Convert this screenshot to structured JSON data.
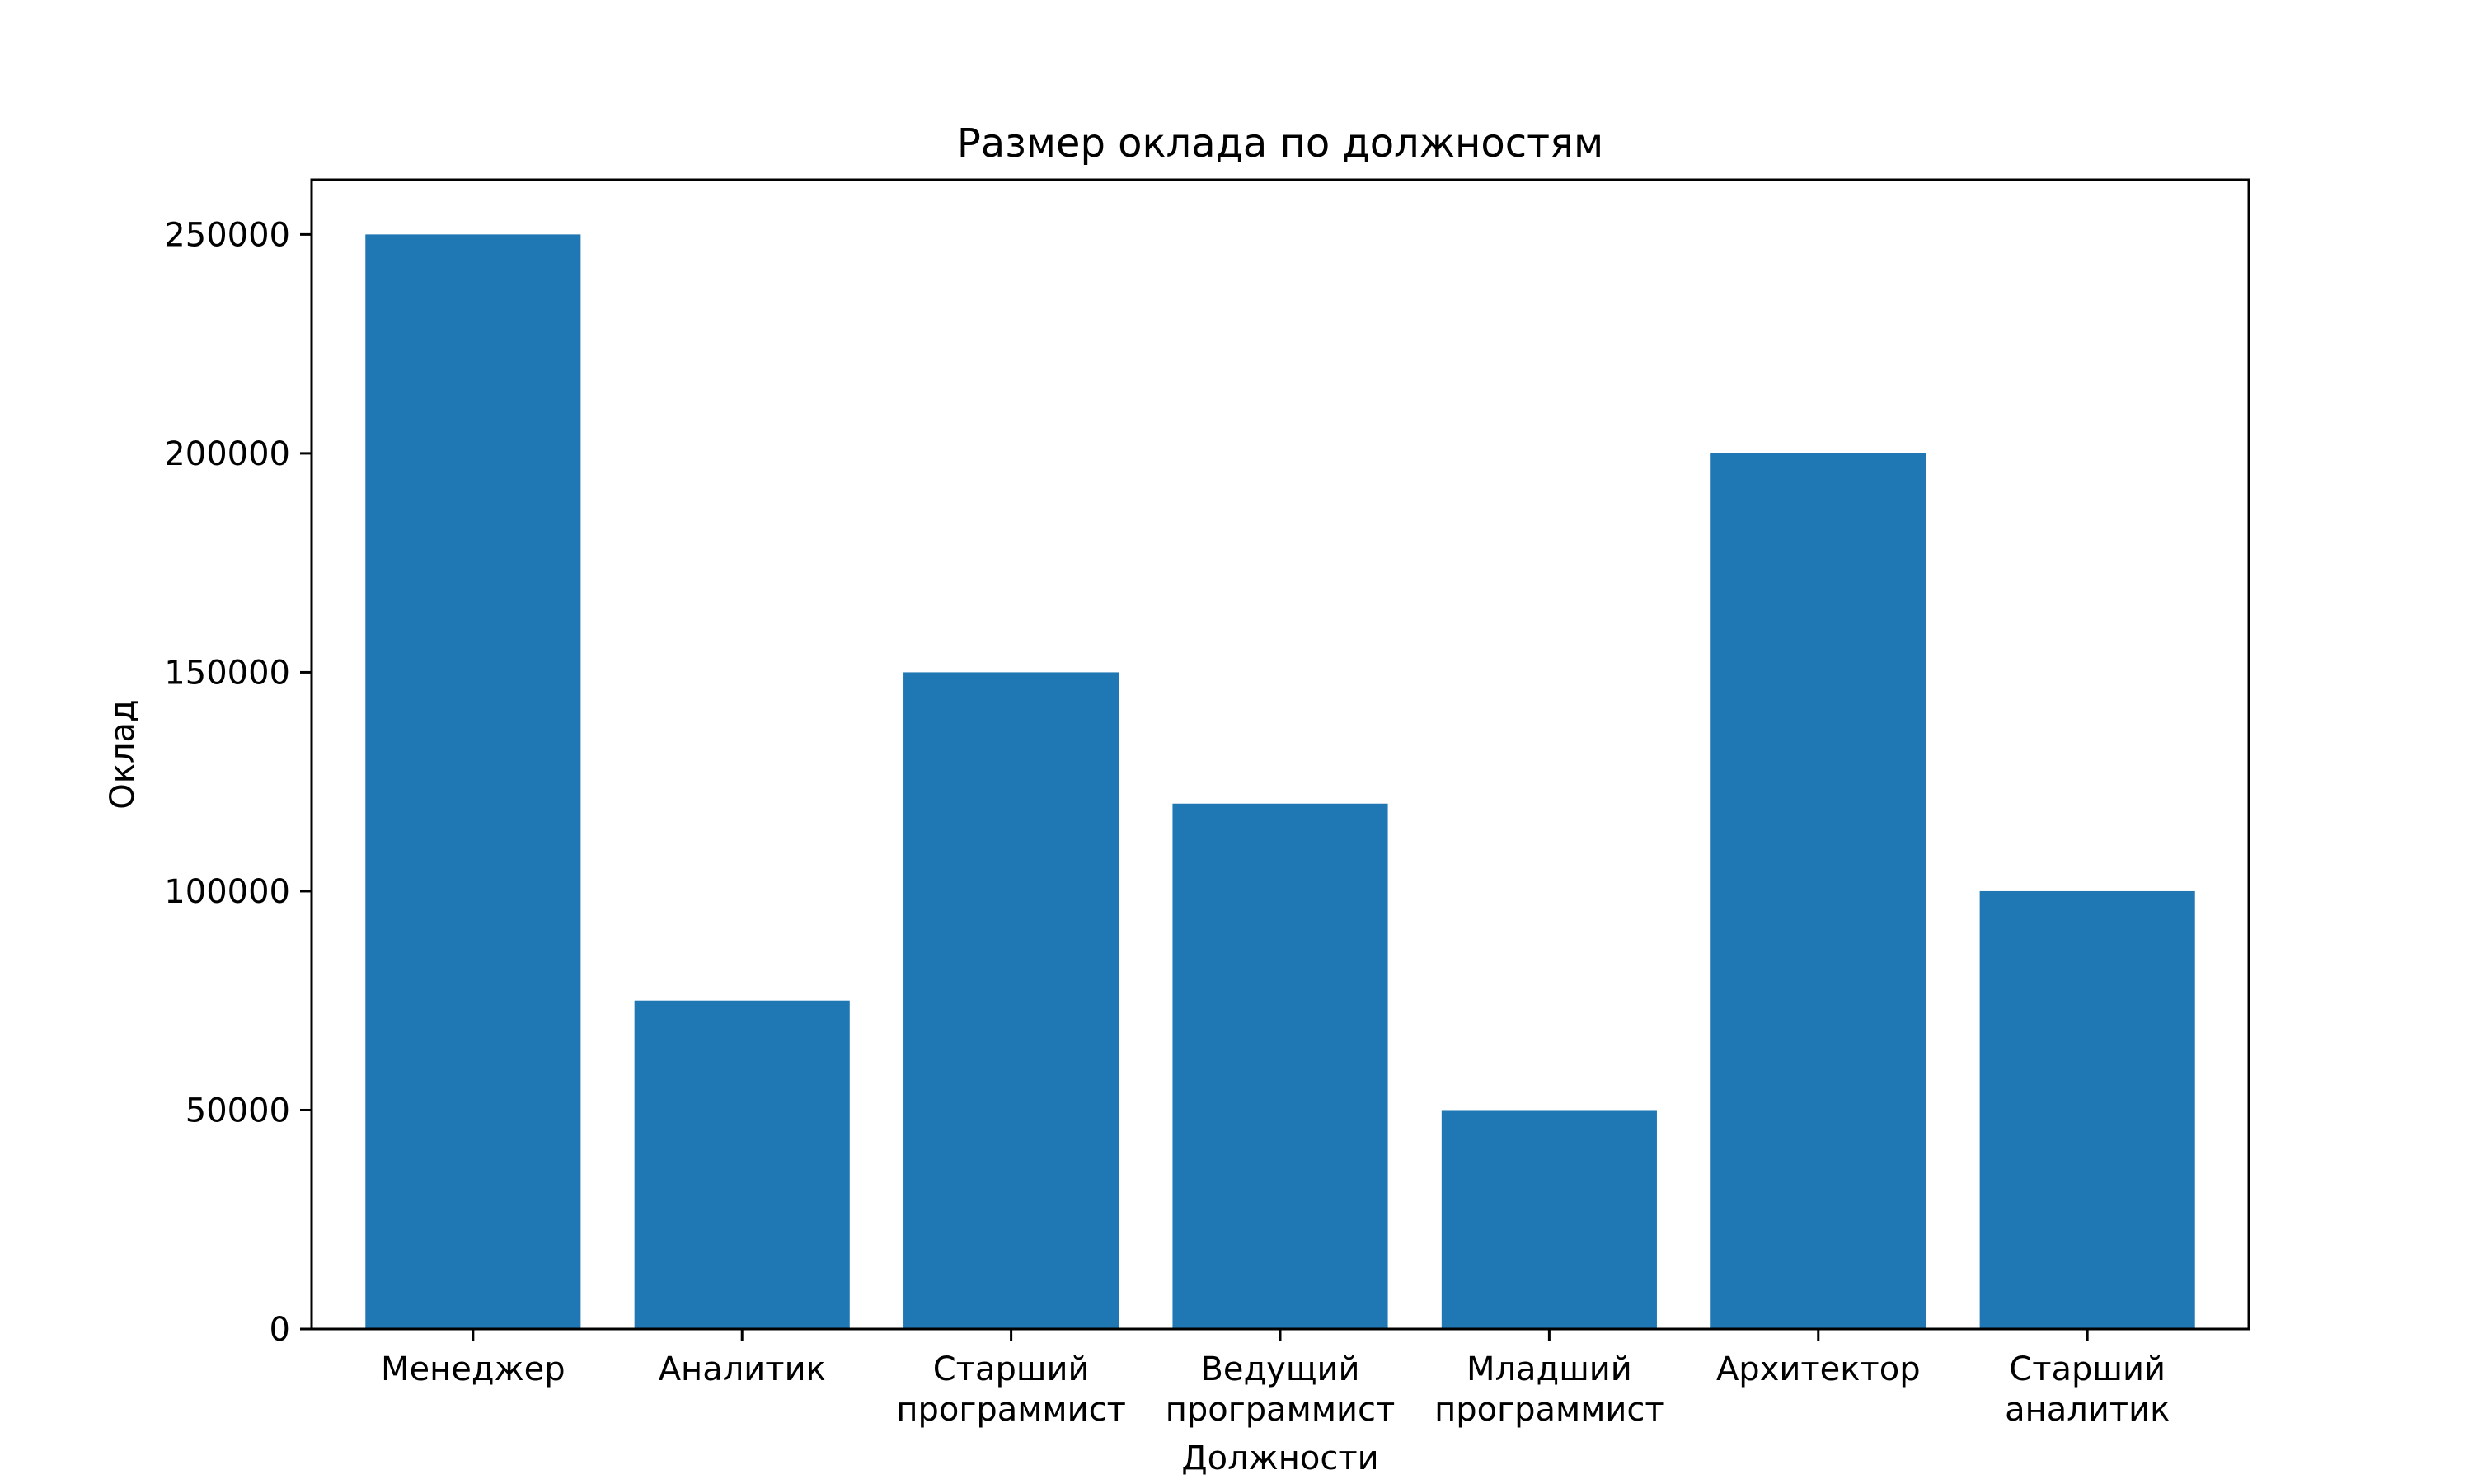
{
  "chart_data": {
    "type": "bar",
    "title": "Размер оклада по должностям",
    "xlabel": "Должности",
    "ylabel": "Оклад",
    "categories": [
      [
        "Менеджер"
      ],
      [
        "Аналитик"
      ],
      [
        "Старший",
        "программист"
      ],
      [
        "Ведущий",
        "программист"
      ],
      [
        "Младший",
        "программист"
      ],
      [
        "Архитектор"
      ],
      [
        "Старший",
        "аналитик"
      ]
    ],
    "values": [
      250000,
      75000,
      150000,
      120000,
      50000,
      200000,
      100000
    ],
    "yticks": [
      0,
      50000,
      100000,
      150000,
      200000,
      250000
    ],
    "ylim": [
      0,
      262500
    ],
    "bar_color": "#1f77b4",
    "grid": false,
    "legend": false
  }
}
